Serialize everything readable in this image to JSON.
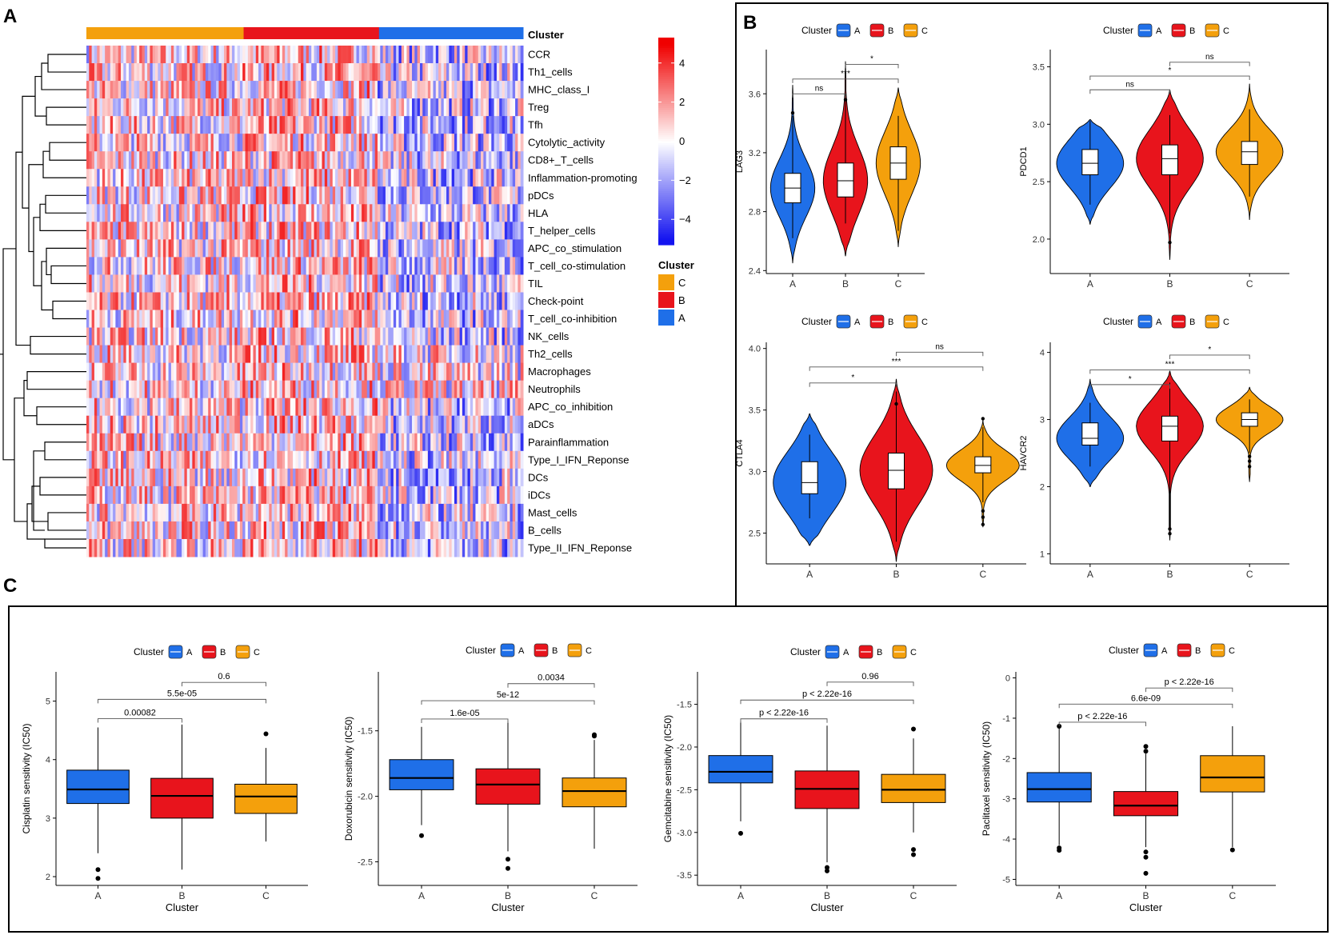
{
  "colors": {
    "A": "#1f6fe8",
    "B": "#e8141c",
    "C": "#f4a00c",
    "heat_high": "#f00000",
    "heat_mid": "#ffffff",
    "heat_low": "#1414f0"
  },
  "panels": {
    "a": "A",
    "b": "B",
    "c": "C"
  },
  "chart_data": [
    {
      "id": "heatmap",
      "type": "heatmap",
      "panel": "A",
      "title": "",
      "annotation_label": "Cluster",
      "annotation_segments": [
        {
          "group": "C",
          "fraction": 0.36
        },
        {
          "group": "B",
          "fraction": 0.31
        },
        {
          "group": "A",
          "fraction": 0.33
        }
      ],
      "rows": [
        "CCR",
        "Th1_cells",
        "MHC_class_I",
        "Treg",
        "Tfh",
        "Cytolytic_activity",
        "CD8+_T_cells",
        "Inflammation-promoting",
        "pDCs",
        "HLA",
        "T_helper_cells",
        "APC_co_stimulation",
        "T_cell_co-stimulation",
        "TIL",
        "Check-point",
        "T_cell_co-inhibition",
        "NK_cells",
        "Th2_cells",
        "Macrophages",
        "Neutrophils",
        "APC_co_inhibition",
        "aDCs",
        "Parainflammation",
        "Type_I_IFN_Reponse",
        "DCs",
        "iDCs",
        "Mast_cells",
        "B_cells",
        "Type_II_IFN_Reponse"
      ],
      "color_scale": {
        "ticks": [
          "4",
          "2",
          "0",
          "−2",
          "−4"
        ],
        "range": [
          -5,
          5
        ]
      },
      "legend": {
        "title": "Cluster",
        "entries": [
          "C",
          "B",
          "A"
        ]
      }
    },
    {
      "id": "lag3",
      "type": "violin",
      "panel": "B",
      "legend_title": "Cluster",
      "legend_entries": [
        "A",
        "B",
        "C"
      ],
      "xlabel": "",
      "ylabel": "LAG3",
      "categories": [
        "A",
        "B",
        "C"
      ],
      "ylim": [
        2.38,
        3.9
      ],
      "yticks": [
        {
          "v": 2.4,
          "l": "2.4"
        },
        {
          "v": 2.8,
          "l": "2.8"
        },
        {
          "v": 3.2,
          "l": "3.2"
        },
        {
          "v": 3.6,
          "l": "3.6"
        }
      ],
      "groups": [
        {
          "name": "A",
          "min": 2.45,
          "max": 3.66,
          "q1": 2.86,
          "median": 2.96,
          "q3": 3.06,
          "wlo": 2.62,
          "whi": 3.45,
          "outliers": [
            3.47
          ]
        },
        {
          "name": "B",
          "min": 2.5,
          "max": 3.82,
          "q1": 2.9,
          "median": 3.01,
          "q3": 3.13,
          "wlo": 2.72,
          "whi": 3.56,
          "outliers": [
            3.56
          ]
        },
        {
          "name": "C",
          "min": 2.56,
          "max": 3.64,
          "q1": 3.02,
          "median": 3.13,
          "q3": 3.24,
          "wlo": 2.67,
          "whi": 3.45,
          "outliers": []
        }
      ],
      "comparisons": [
        {
          "from": 0,
          "to": 1,
          "label": "ns",
          "y": 3.6
        },
        {
          "from": 0,
          "to": 2,
          "label": "***",
          "y": 3.7
        },
        {
          "from": 1,
          "to": 2,
          "label": "*",
          "y": 3.8
        }
      ]
    },
    {
      "id": "pdcd1",
      "type": "violin",
      "panel": "B",
      "legend_title": "Cluster",
      "legend_entries": [
        "A",
        "B",
        "C"
      ],
      "xlabel": "",
      "ylabel": "PDCD1",
      "categories": [
        "A",
        "B",
        "C"
      ],
      "ylim": [
        1.7,
        3.65
      ],
      "yticks": [
        {
          "v": 2.0,
          "l": "2.0"
        },
        {
          "v": 2.5,
          "l": "2.5"
        },
        {
          "v": 3.0,
          "l": "3.0"
        },
        {
          "v": 3.5,
          "l": "3.5"
        }
      ],
      "groups": [
        {
          "name": "A",
          "min": 2.13,
          "max": 3.04,
          "q1": 2.56,
          "median": 2.66,
          "q3": 2.78,
          "wlo": 2.3,
          "whi": 3.03,
          "outliers": []
        },
        {
          "name": "B",
          "min": 1.82,
          "max": 3.3,
          "q1": 2.56,
          "median": 2.7,
          "q3": 2.82,
          "wlo": 2.05,
          "whi": 3.08,
          "outliers": [
            1.97
          ]
        },
        {
          "name": "C",
          "min": 2.17,
          "max": 3.35,
          "q1": 2.65,
          "median": 2.76,
          "q3": 2.85,
          "wlo": 2.37,
          "whi": 3.13,
          "outliers": []
        }
      ],
      "comparisons": [
        {
          "from": 0,
          "to": 1,
          "label": "ns",
          "y": 3.3
        },
        {
          "from": 0,
          "to": 2,
          "label": "*",
          "y": 3.42
        },
        {
          "from": 1,
          "to": 2,
          "label": "ns",
          "y": 3.54
        }
      ]
    },
    {
      "id": "ctla4",
      "type": "violin",
      "panel": "B",
      "legend_title": "Cluster",
      "legend_entries": [
        "A",
        "B",
        "C"
      ],
      "xlabel": "",
      "ylabel": "CTLA4",
      "categories": [
        "A",
        "B",
        "C"
      ],
      "ylim": [
        2.25,
        4.05
      ],
      "yticks": [
        {
          "v": 2.5,
          "l": "2.5"
        },
        {
          "v": 3.0,
          "l": "3.0"
        },
        {
          "v": 3.5,
          "l": "3.5"
        },
        {
          "v": 4.0,
          "l": "4.0"
        }
      ],
      "groups": [
        {
          "name": "A",
          "min": 2.4,
          "max": 3.47,
          "q1": 2.82,
          "median": 2.91,
          "q3": 3.08,
          "wlo": 2.62,
          "whi": 3.3,
          "outliers": []
        },
        {
          "name": "B",
          "min": 2.27,
          "max": 3.75,
          "q1": 2.86,
          "median": 3.01,
          "q3": 3.15,
          "wlo": 2.43,
          "whi": 3.65,
          "outliers": [
            3.55
          ]
        },
        {
          "name": "C",
          "min": 2.55,
          "max": 3.42,
          "q1": 2.99,
          "median": 3.05,
          "q3": 3.12,
          "wlo": 2.75,
          "whi": 3.36,
          "outliers": [
            2.57,
            2.63,
            2.68,
            3.43
          ]
        }
      ],
      "comparisons": [
        {
          "from": 0,
          "to": 1,
          "label": "*",
          "y": 3.72
        },
        {
          "from": 0,
          "to": 2,
          "label": "***",
          "y": 3.85
        },
        {
          "from": 1,
          "to": 2,
          "label": "ns",
          "y": 3.97
        }
      ]
    },
    {
      "id": "havcr2",
      "type": "violin",
      "panel": "B",
      "legend_title": "Cluster",
      "legend_entries": [
        "A",
        "B",
        "C"
      ],
      "xlabel": "",
      "ylabel": "HAVCR2",
      "categories": [
        "A",
        "B",
        "C"
      ],
      "ylim": [
        0.85,
        4.15
      ],
      "yticks": [
        {
          "v": 1,
          "l": "1"
        },
        {
          "v": 2,
          "l": "2"
        },
        {
          "v": 3,
          "l": "3"
        },
        {
          "v": 4,
          "l": "4"
        }
      ],
      "groups": [
        {
          "name": "A",
          "min": 2.0,
          "max": 3.6,
          "q1": 2.62,
          "median": 2.72,
          "q3": 2.95,
          "wlo": 2.3,
          "whi": 3.25,
          "outliers": []
        },
        {
          "name": "B",
          "min": 1.2,
          "max": 3.72,
          "q1": 2.68,
          "median": 2.9,
          "q3": 3.05,
          "wlo": 1.4,
          "whi": 3.55,
          "outliers": [
            1.3,
            1.37
          ]
        },
        {
          "name": "C",
          "min": 2.08,
          "max": 3.48,
          "q1": 2.9,
          "median": 3.0,
          "q3": 3.1,
          "wlo": 2.5,
          "whi": 3.3,
          "outliers": [
            2.3,
            2.38,
            2.45
          ]
        }
      ],
      "comparisons": [
        {
          "from": 0,
          "to": 1,
          "label": "*",
          "y": 3.52
        },
        {
          "from": 0,
          "to": 2,
          "label": "***",
          "y": 3.74
        },
        {
          "from": 1,
          "to": 2,
          "label": "*",
          "y": 3.96
        }
      ]
    },
    {
      "id": "cisplatin",
      "type": "box",
      "panel": "C",
      "legend_title": "Cluster",
      "legend_entries": [
        "A",
        "B",
        "C"
      ],
      "xlabel": "Cluster",
      "ylabel": "Cisplatin sensitivity (IC50)",
      "categories": [
        "A",
        "B",
        "C"
      ],
      "ylim": [
        1.85,
        5.5
      ],
      "yticks": [
        {
          "v": 2,
          "l": "2"
        },
        {
          "v": 3,
          "l": "3"
        },
        {
          "v": 4,
          "l": "4"
        },
        {
          "v": 5,
          "l": "5"
        }
      ],
      "groups": [
        {
          "name": "A",
          "q1": 3.25,
          "median": 3.49,
          "q3": 3.82,
          "wlo": 2.4,
          "whi": 4.55,
          "outliers": [
            1.97,
            2.12
          ]
        },
        {
          "name": "B",
          "q1": 3.0,
          "median": 3.38,
          "q3": 3.68,
          "wlo": 2.12,
          "whi": 4.6,
          "outliers": []
        },
        {
          "name": "C",
          "q1": 3.08,
          "median": 3.37,
          "q3": 3.58,
          "wlo": 2.6,
          "whi": 4.2,
          "outliers": [
            4.44
          ]
        }
      ],
      "comparisons": [
        {
          "from": 0,
          "to": 1,
          "label": "0.00082",
          "y": 4.7
        },
        {
          "from": 0,
          "to": 2,
          "label": "5.5e-05",
          "y": 5.03
        },
        {
          "from": 1,
          "to": 2,
          "label": "0.6",
          "y": 5.32
        }
      ]
    },
    {
      "id": "doxorubicin",
      "type": "box",
      "panel": "C",
      "legend_title": "Cluster",
      "legend_entries": [
        "A",
        "B",
        "C"
      ],
      "xlabel": "Cluster",
      "ylabel": "Doxorubicin sensitivity (IC50)",
      "categories": [
        "A",
        "B",
        "C"
      ],
      "ylim": [
        -2.68,
        -1.05
      ],
      "yticks": [
        {
          "v": -2.5,
          "l": "-2.5"
        },
        {
          "v": -2.0,
          "l": "-2.0"
        },
        {
          "v": -1.5,
          "l": "-1.5"
        }
      ],
      "groups": [
        {
          "name": "A",
          "q1": -1.95,
          "median": -1.86,
          "q3": -1.72,
          "wlo": -2.22,
          "whi": -1.47,
          "outliers": [
            -2.3
          ]
        },
        {
          "name": "B",
          "q1": -2.06,
          "median": -1.91,
          "q3": -1.79,
          "wlo": -2.42,
          "whi": -1.43,
          "outliers": [
            -2.48,
            -2.55
          ]
        },
        {
          "name": "C",
          "q1": -2.08,
          "median": -1.96,
          "q3": -1.86,
          "wlo": -2.4,
          "whi": -1.57,
          "outliers": [
            -1.53,
            -1.54
          ]
        }
      ],
      "comparisons": [
        {
          "from": 0,
          "to": 1,
          "label": "1.6e-05",
          "y": -1.41
        },
        {
          "from": 0,
          "to": 2,
          "label": "5e-12",
          "y": -1.27
        },
        {
          "from": 1,
          "to": 2,
          "label": "0.0034",
          "y": -1.14
        }
      ]
    },
    {
      "id": "gemcitabine",
      "type": "box",
      "panel": "C",
      "legend_title": "Cluster",
      "legend_entries": [
        "A",
        "B",
        "C"
      ],
      "xlabel": "Cluster",
      "ylabel": "Gemcitabine sensitivity (IC50)",
      "categories": [
        "A",
        "B",
        "C"
      ],
      "ylim": [
        -3.62,
        -1.12
      ],
      "yticks": [
        {
          "v": -3.5,
          "l": "-3.5"
        },
        {
          "v": -3.0,
          "l": "-3.0"
        },
        {
          "v": -2.5,
          "l": "-2.5"
        },
        {
          "v": -2.0,
          "l": "-2.0"
        },
        {
          "v": -1.5,
          "l": "-1.5"
        }
      ],
      "groups": [
        {
          "name": "A",
          "q1": -2.42,
          "median": -2.29,
          "q3": -2.1,
          "wlo": -2.87,
          "whi": -1.7,
          "outliers": [
            -3.01
          ]
        },
        {
          "name": "B",
          "q1": -2.72,
          "median": -2.49,
          "q3": -2.28,
          "wlo": -3.35,
          "whi": -1.75,
          "outliers": [
            -3.41,
            -3.45
          ]
        },
        {
          "name": "C",
          "q1": -2.65,
          "median": -2.5,
          "q3": -2.32,
          "wlo": -3.0,
          "whi": -1.9,
          "outliers": [
            -1.79,
            -3.2,
            -3.26
          ]
        }
      ],
      "comparisons": [
        {
          "from": 0,
          "to": 1,
          "label": "p < 2.22e-16",
          "y": -1.67
        },
        {
          "from": 0,
          "to": 2,
          "label": "p < 2.22e-16",
          "y": -1.45
        },
        {
          "from": 1,
          "to": 2,
          "label": "0.96",
          "y": -1.24
        }
      ]
    },
    {
      "id": "paclitaxel",
      "type": "box",
      "panel": "C",
      "legend_title": "Cluster",
      "legend_entries": [
        "A",
        "B",
        "C"
      ],
      "xlabel": "Cluster",
      "ylabel": "Paclitaxel sensitivity (IC50)",
      "categories": [
        "A",
        "B",
        "C"
      ],
      "ylim": [
        -5.15,
        0.15
      ],
      "yticks": [
        {
          "v": -5,
          "l": "-5"
        },
        {
          "v": -4,
          "l": "-4"
        },
        {
          "v": -3,
          "l": "-3"
        },
        {
          "v": -2,
          "l": "-2"
        },
        {
          "v": -1,
          "l": "-1"
        },
        {
          "v": 0,
          "l": "0"
        }
      ],
      "groups": [
        {
          "name": "A",
          "q1": -3.08,
          "median": -2.76,
          "q3": -2.35,
          "wlo": -4.15,
          "whi": -1.25,
          "outliers": [
            -1.2,
            -4.22,
            -4.28
          ]
        },
        {
          "name": "B",
          "q1": -3.42,
          "median": -3.17,
          "q3": -2.82,
          "wlo": -4.2,
          "whi": -1.88,
          "outliers": [
            -1.7,
            -1.82,
            -4.32,
            -4.45,
            -4.85
          ]
        },
        {
          "name": "C",
          "q1": -2.83,
          "median": -2.47,
          "q3": -1.93,
          "wlo": -4.2,
          "whi": -1.2,
          "outliers": [
            -4.27
          ]
        }
      ],
      "comparisons": [
        {
          "from": 0,
          "to": 1,
          "label": "p < 2.22e-16",
          "y": -1.1
        },
        {
          "from": 0,
          "to": 2,
          "label": "6.6e-09",
          "y": -0.65
        },
        {
          "from": 1,
          "to": 2,
          "label": "p < 2.22e-16",
          "y": -0.25
        }
      ]
    }
  ]
}
